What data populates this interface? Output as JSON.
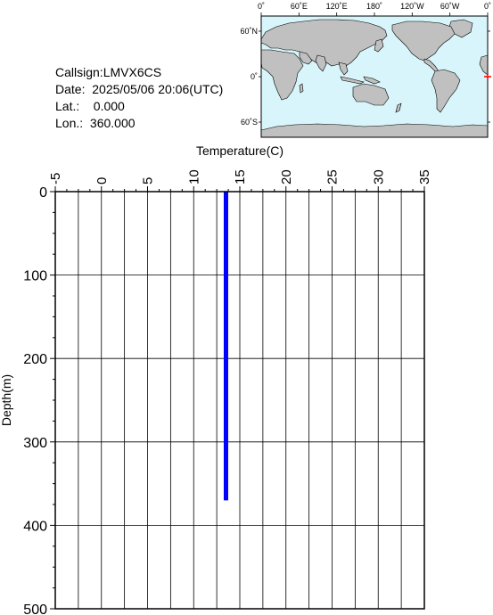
{
  "info": {
    "callsign": "Callsign:LMVX6CS",
    "date": "Date:  2025/05/06 20:06(UTC)",
    "lat": "Lat.:    0.000",
    "lon": "Lon.:  360.000"
  },
  "map": {
    "top_labels": [
      "0˚",
      "60˚E",
      "120˚E",
      "180˚",
      "120˚W",
      "60˚W",
      "0˚"
    ],
    "left_labels": [
      "60˚N",
      "0˚",
      "60˚S"
    ],
    "colors": {
      "ocean": "#d7f5fa",
      "land": "#c0c0c0",
      "marker": "#ff0000"
    },
    "marker": {
      "lon": 360,
      "lat": 0
    }
  },
  "chart_data": {
    "type": "line",
    "xlabel": "Temperature(C)",
    "ylabel": "Depth(m)",
    "xlim": [
      -5,
      35
    ],
    "ylim": [
      0,
      500
    ],
    "x_ticks": [
      "-5",
      "0",
      "5",
      "10",
      "15",
      "20",
      "25",
      "30",
      "35"
    ],
    "y_ticks": [
      "0",
      "100",
      "200",
      "300",
      "400",
      "500"
    ],
    "series": [
      {
        "color": "#0000ff",
        "points": [
          {
            "x": 13.5,
            "y": 0
          },
          {
            "x": 13.5,
            "y": 370
          }
        ]
      }
    ]
  }
}
